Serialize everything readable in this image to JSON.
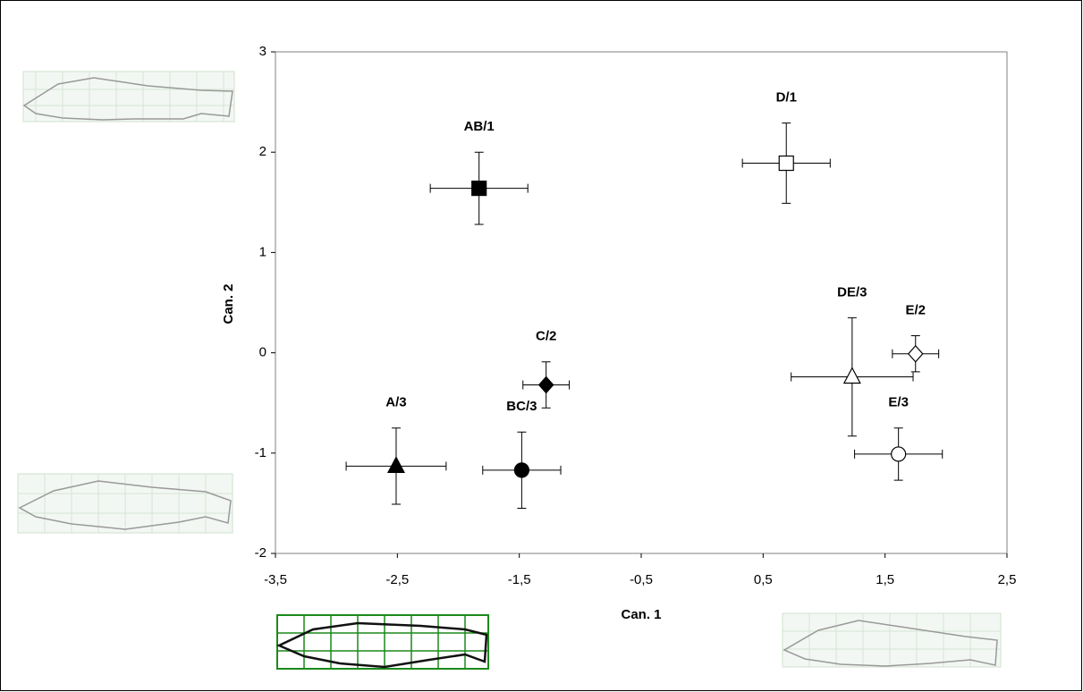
{
  "chart_data": {
    "type": "scatter",
    "x_label": "Can. 1",
    "y_label": "Can. 2",
    "xlim": [
      -3.5,
      2.5
    ],
    "ylim": [
      -2,
      3
    ],
    "xticks": [
      {
        "value": -3.5,
        "label": "-3,5"
      },
      {
        "value": -2.5,
        "label": "-2,5"
      },
      {
        "value": -1.5,
        "label": "-1,5"
      },
      {
        "value": -0.5,
        "label": "-0,5"
      },
      {
        "value": 0.5,
        "label": "0,5"
      },
      {
        "value": 1.5,
        "label": "1,5"
      },
      {
        "value": 2.5,
        "label": "2,5"
      }
    ],
    "yticks": [
      -2,
      -1,
      0,
      1,
      2,
      3
    ],
    "grid": false,
    "points": [
      {
        "label": "AB/1",
        "x": -1.83,
        "y": 1.64,
        "xerr": 0.4,
        "yerr": 0.36,
        "marker": "square",
        "color": "#000000"
      },
      {
        "label": "D/1",
        "x": 0.69,
        "y": 1.89,
        "xerr": 0.36,
        "yerr": 0.4,
        "marker": "square",
        "color": "#ffffff"
      },
      {
        "label": "C/2",
        "x": -1.28,
        "y": -0.32,
        "xerr": 0.19,
        "yerr": 0.23,
        "marker": "diamond",
        "color": "#000000"
      },
      {
        "label": "BC/3",
        "x": -1.48,
        "y": -1.17,
        "xerr": 0.32,
        "yerr": 0.38,
        "marker": "circle",
        "color": "#000000"
      },
      {
        "label": "A/3",
        "x": -2.51,
        "y": -1.13,
        "xerr": 0.41,
        "yerr": 0.38,
        "marker": "triangle",
        "color": "#000000"
      },
      {
        "label": "DE/3",
        "x": 1.23,
        "y": -0.24,
        "xerr": 0.5,
        "yerr": 0.59,
        "marker": "triangle",
        "color": "#ffffff"
      },
      {
        "label": "E/2",
        "x": 1.75,
        "y": -0.01,
        "xerr": 0.19,
        "yerr": 0.18,
        "marker": "diamond",
        "color": "#ffffff"
      },
      {
        "label": "E/3",
        "x": 1.61,
        "y": -1.01,
        "xerr": 0.36,
        "yerr": 0.26,
        "marker": "circle",
        "color": "#ffffff"
      }
    ]
  }
}
